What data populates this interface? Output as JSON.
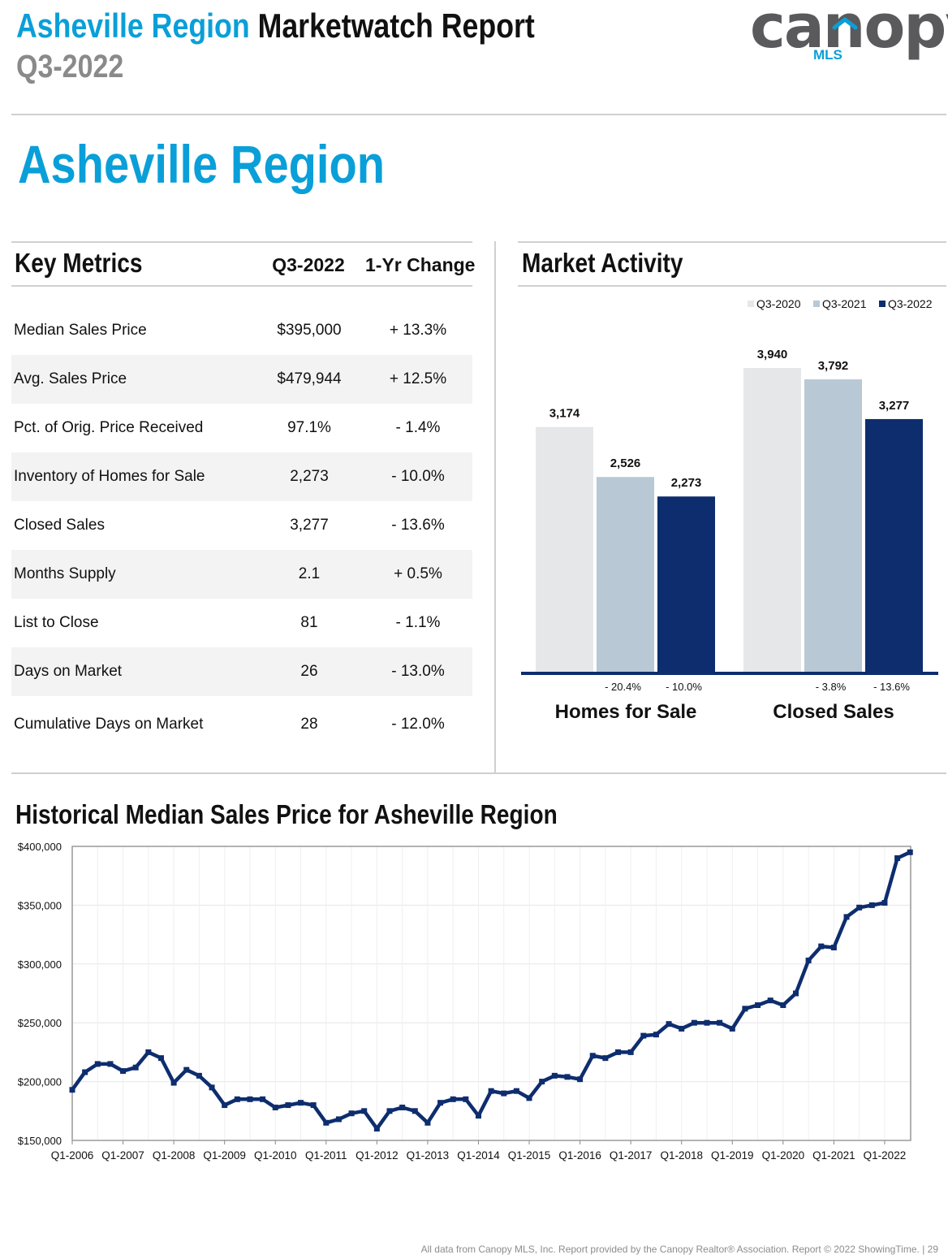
{
  "header": {
    "region_name": "Asheville Region",
    "report_name": "Marketwatch Report",
    "period": "Q3-2022",
    "logo_word": "canopy",
    "logo_sub": "MLS"
  },
  "region_title": "Asheville Region",
  "key_metrics": {
    "title": "Key Metrics",
    "col_period": "Q3-2022",
    "col_change": "1-Yr Change",
    "rows": [
      {
        "label": "Median Sales Price",
        "value": "$395,000",
        "change": "+ 13.3%"
      },
      {
        "label": "Avg. Sales Price",
        "value": "$479,944",
        "change": "+ 12.5%"
      },
      {
        "label": "Pct. of Orig. Price Received",
        "value": "97.1%",
        "change": "- 1.4%"
      },
      {
        "label": "Inventory of Homes for Sale",
        "value": "2,273",
        "change": "- 10.0%"
      },
      {
        "label": "Closed Sales",
        "value": "3,277",
        "change": "- 13.6%"
      },
      {
        "label": "Months Supply",
        "value": "2.1",
        "change": "+ 0.5%"
      },
      {
        "label": "List to Close",
        "value": "81",
        "change": "- 1.1%"
      },
      {
        "label": "Days on Market",
        "value": "26",
        "change": "- 13.0%"
      },
      {
        "label": "Cumulative Days on Market",
        "value": "28",
        "change": "- 12.0%"
      }
    ]
  },
  "market_activity": {
    "title": "Market Activity"
  },
  "colors": {
    "accent_blue": "#0a9fd8",
    "navy": "#0d2d6e",
    "bar_2020": "#e5e7e9",
    "bar_2021": "#b8c8d5",
    "bar_2022": "#0d2d6e"
  },
  "chart_data": [
    {
      "type": "bar",
      "title": "Market Activity",
      "legend": [
        "Q3-2020",
        "Q3-2021",
        "Q3-2022"
      ],
      "legend_position": "top-right",
      "categories": [
        "Homes for Sale",
        "Closed Sales"
      ],
      "series": [
        {
          "name": "Q3-2020",
          "values": [
            3174,
            3940
          ],
          "labels": [
            "3,174",
            "3,940"
          ]
        },
        {
          "name": "Q3-2021",
          "values": [
            2526,
            3792
          ],
          "labels": [
            "2,526",
            "3,792"
          ]
        },
        {
          "name": "Q3-2022",
          "values": [
            2273,
            3277
          ],
          "labels": [
            "2,273",
            "3,277"
          ]
        }
      ],
      "changes": [
        [
          "- 20.4%",
          "- 10.0%"
        ],
        [
          "- 3.8%",
          "- 13.6%"
        ]
      ],
      "ylim": [
        0,
        4200
      ]
    },
    {
      "type": "line",
      "title": "Historical Median Sales Price for Asheville Region",
      "xlabel": "",
      "ylabel": "",
      "ylim": [
        150000,
        400000
      ],
      "y_ticks": [
        150000,
        200000,
        250000,
        300000,
        350000,
        400000
      ],
      "y_tick_labels": [
        "$150,000",
        "$200,000",
        "$250,000",
        "$300,000",
        "$350,000",
        "$400,000"
      ],
      "x_tick_labels": [
        "Q1-2006",
        "Q1-2007",
        "Q1-2008",
        "Q1-2009",
        "Q1-2010",
        "Q1-2011",
        "Q1-2012",
        "Q1-2013",
        "Q1-2014",
        "Q1-2015",
        "Q1-2016",
        "Q1-2017",
        "Q1-2018",
        "Q1-2019",
        "Q1-2020",
        "Q1-2021",
        "Q1-2022"
      ],
      "grid": true,
      "series": [
        {
          "name": "Median Sales Price",
          "start": "Q1-2006",
          "values": [
            193000,
            208000,
            215000,
            215000,
            209000,
            212000,
            225000,
            220000,
            199000,
            210000,
            205000,
            195000,
            180000,
            185000,
            185000,
            185000,
            178000,
            180000,
            182000,
            180000,
            165000,
            168000,
            173000,
            175000,
            160000,
            175000,
            178000,
            175000,
            165000,
            182000,
            185000,
            185000,
            171000,
            192000,
            190000,
            192000,
            186000,
            200000,
            205000,
            204000,
            202000,
            222000,
            220000,
            225000,
            225000,
            239000,
            240000,
            249000,
            245000,
            250000,
            250000,
            250000,
            245000,
            262000,
            265000,
            269000,
            265000,
            275000,
            303000,
            315000,
            314000,
            340000,
            348000,
            350000,
            352000,
            390000,
            395000
          ]
        }
      ]
    }
  ],
  "footer": "All data from Canopy MLS, Inc. Report provided by the Canopy Realtor® Association. Report © 2022 ShowingTime.  |  29"
}
